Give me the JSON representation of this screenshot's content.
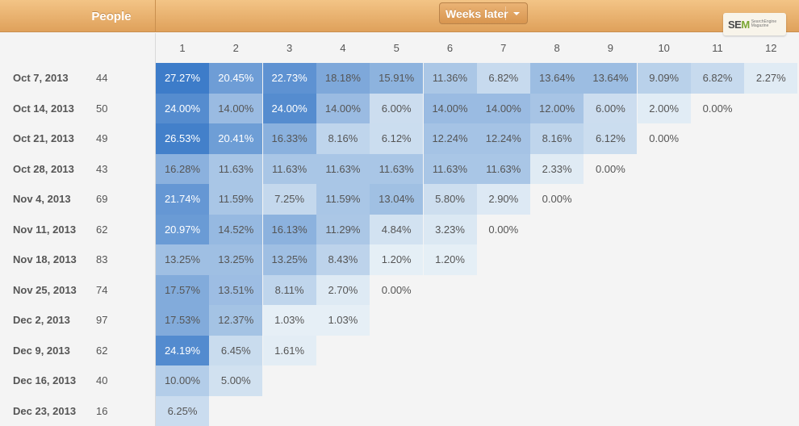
{
  "header": {
    "people_label": "People",
    "weeks_dropdown_label": "Weeks later"
  },
  "logo": {
    "main_left": "SE",
    "main_accent": "M",
    "sub": "SearchEngine Magazine"
  },
  "columns": [
    "1",
    "2",
    "3",
    "4",
    "5",
    "6",
    "7",
    "8",
    "9",
    "10",
    "11",
    "12"
  ],
  "rows": [
    {
      "date": "Oct 7, 2013",
      "people": "44",
      "values": [
        "27.27%",
        "20.45%",
        "22.73%",
        "18.18%",
        "15.91%",
        "11.36%",
        "6.82%",
        "13.64%",
        "13.64%",
        "9.09%",
        "6.82%",
        "2.27%"
      ]
    },
    {
      "date": "Oct 14, 2013",
      "people": "50",
      "values": [
        "24.00%",
        "14.00%",
        "24.00%",
        "14.00%",
        "6.00%",
        "14.00%",
        "14.00%",
        "12.00%",
        "6.00%",
        "2.00%",
        "0.00%"
      ]
    },
    {
      "date": "Oct 21, 2013",
      "people": "49",
      "values": [
        "26.53%",
        "20.41%",
        "16.33%",
        "8.16%",
        "6.12%",
        "12.24%",
        "12.24%",
        "8.16%",
        "6.12%",
        "0.00%"
      ]
    },
    {
      "date": "Oct 28, 2013",
      "people": "43",
      "values": [
        "16.28%",
        "11.63%",
        "11.63%",
        "11.63%",
        "11.63%",
        "11.63%",
        "11.63%",
        "2.33%",
        "0.00%"
      ]
    },
    {
      "date": "Nov 4, 2013",
      "people": "69",
      "values": [
        "21.74%",
        "11.59%",
        "7.25%",
        "11.59%",
        "13.04%",
        "5.80%",
        "2.90%",
        "0.00%"
      ]
    },
    {
      "date": "Nov 11, 2013",
      "people": "62",
      "values": [
        "20.97%",
        "14.52%",
        "16.13%",
        "11.29%",
        "4.84%",
        "3.23%",
        "0.00%"
      ]
    },
    {
      "date": "Nov 18, 2013",
      "people": "83",
      "values": [
        "13.25%",
        "13.25%",
        "13.25%",
        "8.43%",
        "1.20%",
        "1.20%"
      ]
    },
    {
      "date": "Nov 25, 2013",
      "people": "74",
      "values": [
        "17.57%",
        "13.51%",
        "8.11%",
        "2.70%",
        "0.00%"
      ]
    },
    {
      "date": "Dec 2, 2013",
      "people": "97",
      "values": [
        "17.53%",
        "12.37%",
        "1.03%",
        "1.03%"
      ]
    },
    {
      "date": "Dec 9, 2013",
      "people": "62",
      "values": [
        "24.19%",
        "6.45%",
        "1.61%"
      ]
    },
    {
      "date": "Dec 16, 2013",
      "people": "40",
      "values": [
        "10.00%",
        "5.00%"
      ]
    },
    {
      "date": "Dec 23, 2013",
      "people": "16",
      "values": [
        "6.25%"
      ]
    }
  ],
  "colors": {
    "header_orange": "#e3a862",
    "heat_low": "#eaf2f7",
    "heat_high": "#3d7cc9"
  }
}
